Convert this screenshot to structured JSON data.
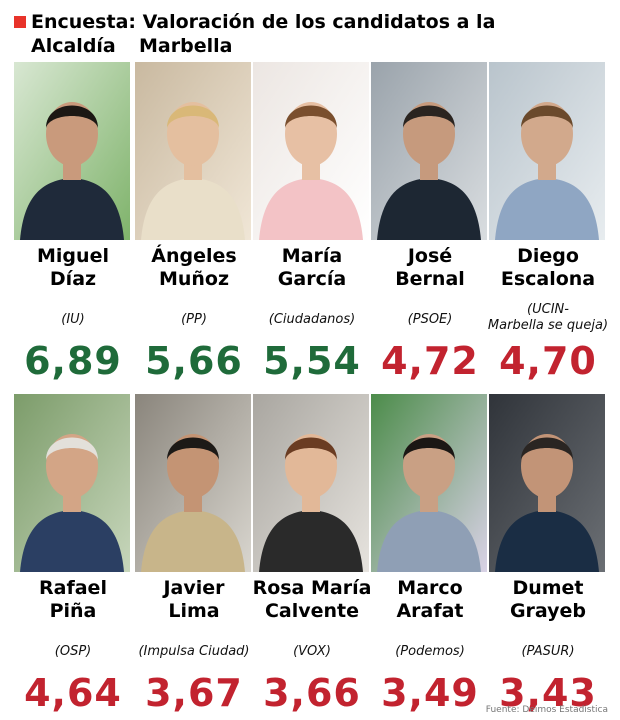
{
  "title": "Encuesta: Valoración de los candidatos a la Alcaldía",
  "title_line2": "Marbella",
  "source": "Fuente: Deimos Estadística",
  "colors": {
    "marker": "#e8332a",
    "high": "#1f6b3a",
    "low": "#c2232f"
  },
  "chart_data": {
    "type": "bar",
    "title": "Encuesta: Valoración de los candidatos a la Alcaldía Marbella",
    "categories": [
      "Miguel Díaz",
      "Ángeles Muñoz",
      "María García",
      "José Bernal",
      "Diego Escalona",
      "Rafael Piña",
      "Javier Lima",
      "Rosa María Calvente",
      "Marco Arafat",
      "Dumet Grayeb"
    ],
    "values": [
      6.89,
      5.66,
      5.54,
      4.72,
      4.7,
      4.64,
      3.67,
      3.66,
      3.49,
      3.43
    ],
    "value_labels": [
      "6,89",
      "5,66",
      "5,54",
      "4,72",
      "4,70",
      "4,64",
      "3,67",
      "3,66",
      "3,49",
      "3,43"
    ],
    "parties": [
      "(IU)",
      "(PP)",
      "(Ciudadanos)",
      "(PSOE)",
      "(UCIN-Marbella se queja)",
      "(OSP)",
      "(Impulsa Ciudad)",
      "(VOX)",
      "(Podemos)",
      "(PASUR)"
    ],
    "value_color_threshold": 5
  },
  "candidates": [
    {
      "name_line1": "Miguel",
      "name_line2": "Díaz",
      "party": "(IU)",
      "party_line2": "",
      "score": "6,89",
      "value": 6.89,
      "icon": "portrait-icon"
    },
    {
      "name_line1": "Ángeles",
      "name_line2": "Muñoz",
      "party": "(PP)",
      "party_line2": "",
      "score": "5,66",
      "value": 5.66,
      "icon": "portrait-icon"
    },
    {
      "name_line1": "María",
      "name_line2": "García",
      "party": "(Ciudadanos)",
      "party_line2": "",
      "score": "5,54",
      "value": 5.54,
      "icon": "portrait-icon"
    },
    {
      "name_line1": "José",
      "name_line2": "Bernal",
      "party": "(PSOE)",
      "party_line2": "",
      "score": "4,72",
      "value": 4.72,
      "icon": "portrait-icon"
    },
    {
      "name_line1": "Diego",
      "name_line2": "Escalona",
      "party": "(UCIN-",
      "party_line2": "Marbella se queja)",
      "score": "4,70",
      "value": 4.7,
      "icon": "portrait-icon"
    },
    {
      "name_line1": "Rafael",
      "name_line2": "Piña",
      "party": "(OSP)",
      "party_line2": "",
      "score": "4,64",
      "value": 4.64,
      "icon": "portrait-icon"
    },
    {
      "name_line1": "Javier",
      "name_line2": "Lima",
      "party": "(Impulsa Ciudad)",
      "party_line2": "",
      "score": "3,67",
      "value": 3.67,
      "icon": "portrait-icon"
    },
    {
      "name_line1": "Rosa María",
      "name_line2": "Calvente",
      "party": "(VOX)",
      "party_line2": "",
      "score": "3,66",
      "value": 3.66,
      "icon": "portrait-icon"
    },
    {
      "name_line1": "Marco",
      "name_line2": "Arafat",
      "party": "(Podemos)",
      "party_line2": "",
      "score": "3,49",
      "value": 3.49,
      "icon": "portrait-icon"
    },
    {
      "name_line1": "Dumet",
      "name_line2": "Grayeb",
      "party": "(PASUR)",
      "party_line2": "",
      "score": "3,43",
      "value": 3.43,
      "icon": "portrait-icon"
    }
  ]
}
